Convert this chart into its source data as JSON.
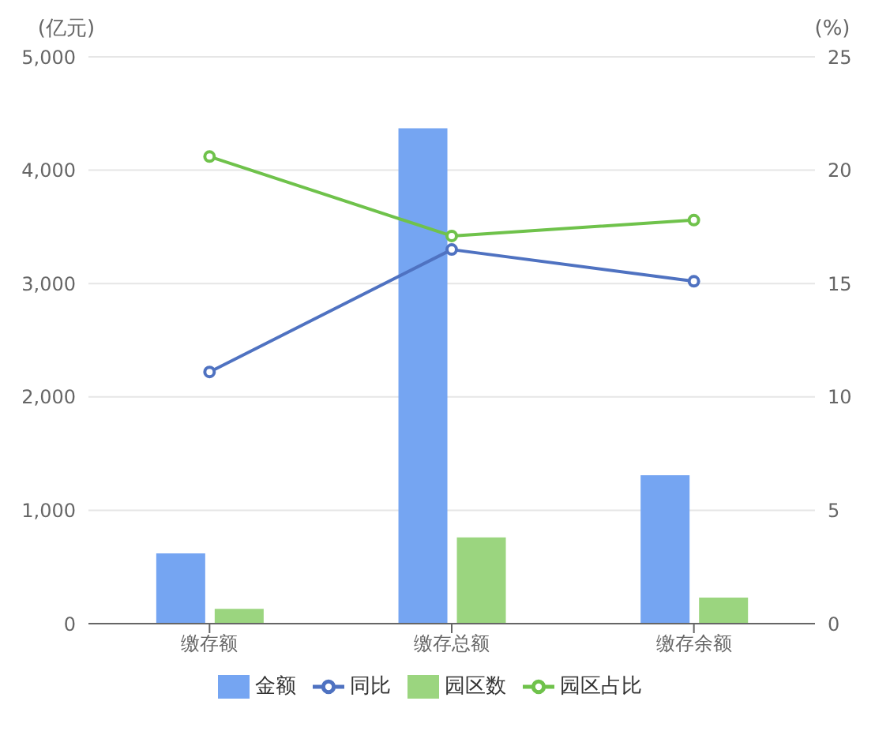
{
  "chart_data": {
    "type": "bar",
    "categories": [
      "缴存额",
      "缴存总额",
      "缴存余额"
    ],
    "ylabel": "(亿元)",
    "y2label": "(%)",
    "series": [
      {
        "name": "金额",
        "color": "#75a5f2",
        "values": [
          620,
          4370,
          1310
        ]
      },
      {
        "name": "同比",
        "type": "line",
        "axis": "y2",
        "color": "#4f72c1",
        "values": [
          11.1,
          16.5,
          15.1
        ]
      },
      {
        "name": "园区数",
        "color": "#9bd57f",
        "values": [
          130,
          760,
          230
        ]
      },
      {
        "name": "园区占比",
        "type": "line",
        "axis": "y2",
        "color": "#6fc24b",
        "values": [
          20.6,
          17.1,
          17.8
        ]
      }
    ],
    "ylim": [
      0,
      5000
    ],
    "yticks": [
      0,
      {
        "value": 1000,
        "label": "1,000"
      },
      {
        "value": 2000,
        "label": "2,000"
      },
      {
        "value": 3000,
        "label": "3,000"
      },
      {
        "value": 4000,
        "label": "4,000"
      },
      {
        "value": 5000,
        "label": "5,000"
      }
    ],
    "y2lim": [
      0,
      25
    ],
    "y2ticks": [
      0,
      5,
      10,
      15,
      20,
      25
    ],
    "grid": "y",
    "legend": "bottom",
    "marker": "circle"
  }
}
